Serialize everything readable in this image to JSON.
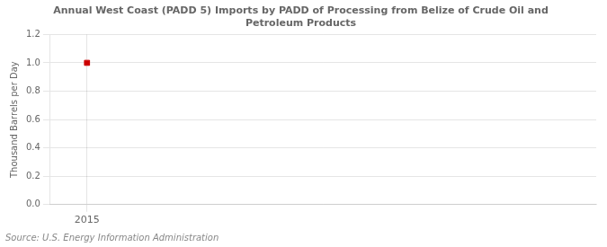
{
  "chart_data": {
    "type": "scatter",
    "title": "Annual West Coast (PADD 5) Imports by PADD of Processing from Belize of Crude Oil and\nPetroleum Products",
    "ylabel": "Thousand Barrels per Day",
    "source": "Source: U.S. Energy Information Administration",
    "x": [
      2015
    ],
    "values": [
      1.0
    ],
    "color": "#cc0000",
    "marker": "square",
    "xlim": [
      2014.3,
      2024.7
    ],
    "xticks": [
      2015
    ],
    "ylim": [
      0.0,
      1.2
    ],
    "yticks": [
      {
        "value": 0.0,
        "label": "0.0"
      },
      0.2,
      0.4,
      0.6,
      0.8,
      {
        "value": 1.0,
        "label": "1.0"
      },
      1.2
    ],
    "grid": true
  }
}
